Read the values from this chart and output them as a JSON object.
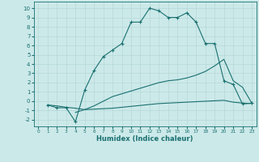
{
  "xlabel": "Humidex (Indice chaleur)",
  "xlim": [
    -0.5,
    23.5
  ],
  "ylim": [
    -2.7,
    10.7
  ],
  "xticks": [
    0,
    1,
    2,
    3,
    4,
    5,
    6,
    7,
    8,
    9,
    10,
    11,
    12,
    13,
    14,
    15,
    16,
    17,
    18,
    19,
    20,
    21,
    22,
    23
  ],
  "yticks": [
    -2,
    -1,
    0,
    1,
    2,
    3,
    4,
    5,
    6,
    7,
    8,
    9,
    10
  ],
  "bg_color": "#cce9e9",
  "line_color": "#1a7070",
  "grid_color": "#b0d4d4",
  "line1_x": [
    1,
    2,
    3,
    4,
    5,
    6,
    7,
    8,
    9,
    10,
    11,
    12,
    13,
    14,
    15,
    16,
    17,
    18,
    19,
    20,
    21,
    22,
    23
  ],
  "line1_y": [
    -0.4,
    -0.7,
    -0.7,
    -2.2,
    1.2,
    3.3,
    4.8,
    5.5,
    6.2,
    8.5,
    8.5,
    10.0,
    9.7,
    9.0,
    9.0,
    9.5,
    8.5,
    6.2,
    6.2,
    2.2,
    1.8,
    -0.3,
    -0.2
  ],
  "line2_x": [
    1,
    2,
    3,
    4,
    5,
    6,
    7,
    8,
    9,
    10,
    11,
    12,
    13,
    14,
    15,
    16,
    17,
    18,
    19,
    20,
    21,
    22,
    23
  ],
  "line2_y": [
    -0.4,
    -0.5,
    -0.65,
    -0.75,
    -0.9,
    -0.85,
    -0.8,
    -0.75,
    -0.65,
    -0.55,
    -0.45,
    -0.35,
    -0.25,
    -0.2,
    -0.15,
    -0.1,
    -0.05,
    0.0,
    0.05,
    0.1,
    -0.1,
    -0.2,
    -0.25
  ],
  "line3_x": [
    4,
    5,
    6,
    7,
    8,
    9,
    10,
    11,
    12,
    13,
    14,
    15,
    16,
    17,
    18,
    19,
    20,
    21,
    22,
    23
  ],
  "line3_y": [
    -1.2,
    -0.9,
    -0.5,
    0.0,
    0.5,
    0.8,
    1.1,
    1.4,
    1.7,
    2.0,
    2.2,
    2.3,
    2.5,
    2.8,
    3.2,
    3.8,
    4.5,
    2.2,
    1.5,
    -0.2
  ]
}
